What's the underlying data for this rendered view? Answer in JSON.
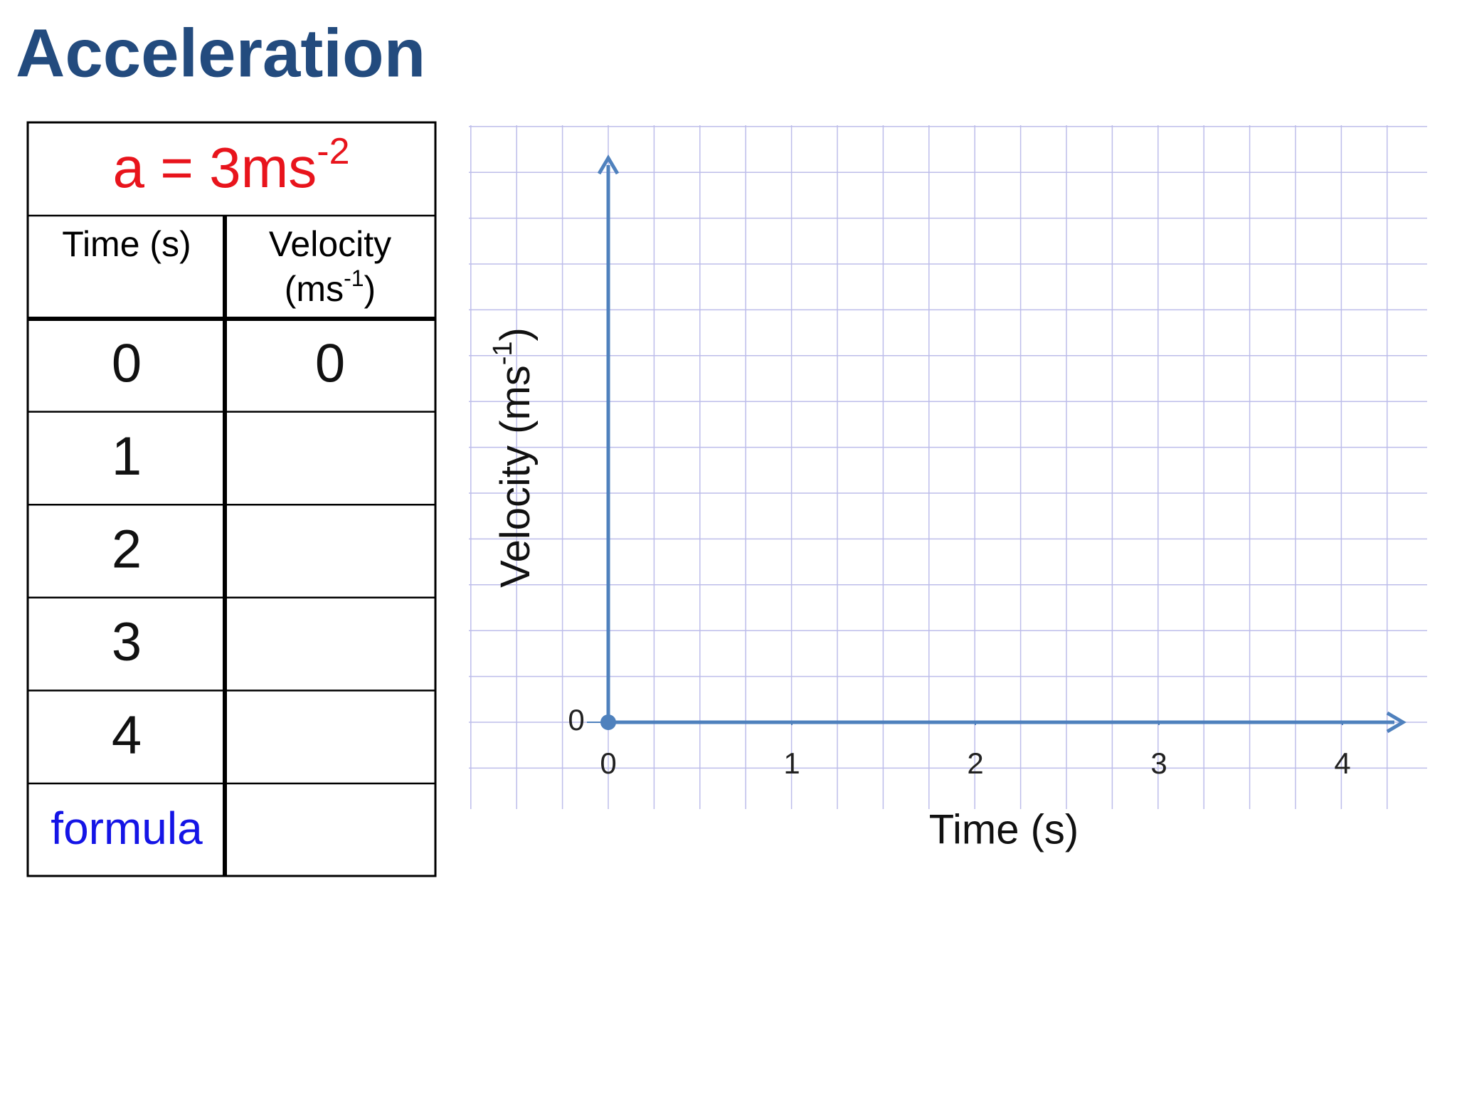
{
  "title": "Acceleration",
  "table": {
    "heading": [
      "a = 3ms",
      "-2"
    ],
    "columns": [
      [
        "Time (s)"
      ],
      [
        "Velocity",
        "(ms",
        "-1",
        ")"
      ]
    ],
    "rows": [
      {
        "time": "0",
        "velocity": "0"
      },
      {
        "time": "1"
      },
      {
        "time": "2"
      },
      {
        "time": "3"
      },
      {
        "time": "4"
      },
      {
        "time": "formula"
      }
    ]
  },
  "graph": {
    "x_label": "Time (s)",
    "y_label": [
      "Velocity (ms",
      "-1",
      ")"
    ],
    "xticks": [
      0,
      1,
      2,
      3,
      4
    ],
    "yticks": [
      0
    ]
  }
}
